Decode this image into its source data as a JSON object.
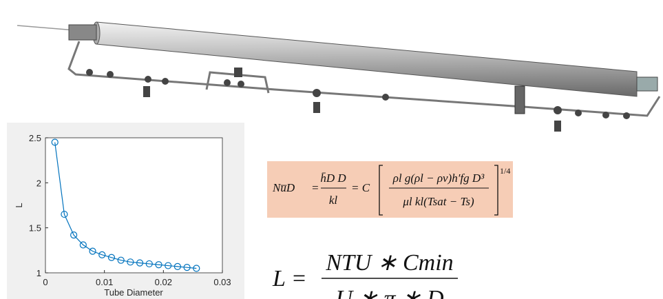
{
  "chart_data": {
    "type": "line",
    "xlabel": "Tube Diameter",
    "ylabel": "L",
    "x": [
      0.0016,
      0.0032,
      0.0048,
      0.0064,
      0.008,
      0.0096,
      0.0112,
      0.0128,
      0.0144,
      0.016,
      0.0176,
      0.0192,
      0.0208,
      0.0224,
      0.024,
      0.0256
    ],
    "values": [
      2.45,
      1.65,
      1.42,
      1.31,
      1.24,
      1.2,
      1.17,
      1.14,
      1.12,
      1.11,
      1.1,
      1.09,
      1.08,
      1.07,
      1.06,
      1.05
    ],
    "color": "#0072bd",
    "marker": "circle",
    "xlim": [
      0,
      0.03
    ],
    "xticks": [
      0,
      0.01,
      0.02,
      0.03
    ],
    "ylim": [
      1,
      2.5
    ],
    "yticks": [
      1,
      1.5,
      2,
      2.5
    ]
  },
  "equation_nusselt": {
    "lhs": "Nu̅D",
    "eq1": "=",
    "frac1_num": "h̄D D",
    "frac1_den": "kl",
    "eq2": "= C",
    "frac2_num": "ρl g(ρl − ρv)h′fg D³",
    "frac2_den": "μl kl(Tsat − Ts)",
    "exponent": "1/4"
  },
  "equation_length": {
    "lhs": "L =",
    "num": "NTU ∗ Cmin",
    "den": "U ∗ π ∗ D"
  }
}
